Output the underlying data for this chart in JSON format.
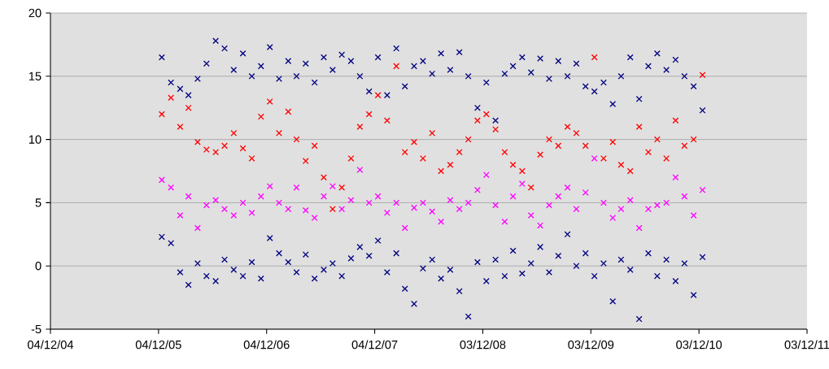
{
  "chart_data": {
    "type": "scatter",
    "x": [
      "2005-12-15",
      "2006-01-15",
      "2006-02-15",
      "2006-03-15",
      "2006-04-15",
      "2006-05-15",
      "2006-06-15",
      "2006-07-15",
      "2006-08-15",
      "2006-09-15",
      "2006-10-15",
      "2006-11-15",
      "2006-12-15",
      "2007-01-15",
      "2007-02-15",
      "2007-03-15",
      "2007-04-15",
      "2007-05-15",
      "2007-06-15",
      "2007-07-15",
      "2007-08-15",
      "2007-09-15",
      "2007-10-15",
      "2007-11-15",
      "2007-12-15",
      "2008-01-15",
      "2008-02-15",
      "2008-03-15",
      "2008-04-15",
      "2008-05-15",
      "2008-06-15",
      "2008-07-15",
      "2008-08-15",
      "2008-09-15",
      "2008-10-15",
      "2008-11-15",
      "2008-12-15",
      "2009-01-15",
      "2009-02-15",
      "2009-03-15",
      "2009-04-15",
      "2009-05-15",
      "2009-06-15",
      "2009-07-15",
      "2009-08-15",
      "2009-09-15",
      "2009-10-15",
      "2009-11-15",
      "2009-12-15",
      "2010-01-15",
      "2010-02-15",
      "2010-03-15",
      "2010-04-15",
      "2010-05-15",
      "2010-06-15",
      "2010-07-15",
      "2010-08-15",
      "2010-09-15",
      "2010-10-15",
      "2010-11-15",
      "2010-12-15"
    ],
    "series": [
      {
        "color": "#000080",
        "values": [
          16.5,
          14.5,
          14.0,
          13.5,
          14.8,
          16.0,
          17.8,
          17.2,
          15.5,
          16.8,
          15.0,
          15.8,
          17.3,
          14.8,
          16.2,
          15.0,
          16.0,
          14.5,
          16.5,
          15.5,
          16.7,
          16.2,
          15.0,
          13.8,
          16.5,
          13.5,
          17.2,
          14.2,
          15.8,
          16.2,
          15.2,
          16.8,
          15.5,
          16.9,
          15.0,
          12.5,
          14.5,
          11.5,
          15.2,
          15.8,
          16.5,
          15.3,
          16.4,
          14.8,
          16.2,
          15.0,
          16.0,
          14.2,
          13.8,
          14.5,
          12.8,
          15.0,
          16.5,
          13.2,
          15.8,
          16.8,
          15.5,
          16.3,
          15.0,
          14.2,
          12.3
        ]
      },
      {
        "color": "#ff0000",
        "values": [
          12.0,
          13.3,
          11.0,
          12.5,
          9.8,
          9.2,
          9.0,
          9.5,
          10.5,
          9.3,
          8.5,
          11.8,
          13.0,
          10.5,
          12.2,
          10.0,
          8.3,
          9.5,
          7.0,
          4.5,
          6.2,
          8.5,
          11.0,
          12.0,
          13.5,
          11.5,
          15.8,
          9.0,
          9.8,
          8.5,
          10.5,
          7.5,
          8.0,
          9.0,
          10.0,
          11.5,
          12.0,
          10.8,
          9.0,
          8.0,
          7.5,
          6.2,
          8.8,
          10.0,
          9.5,
          11.0,
          10.5,
          9.5,
          16.5,
          8.5,
          9.8,
          8.0,
          7.5,
          11.0,
          9.0,
          10.0,
          8.5,
          11.5,
          9.5,
          10.0,
          15.1
        ]
      },
      {
        "color": "#ff00ff",
        "values": [
          6.8,
          6.2,
          4.0,
          5.5,
          3.0,
          4.8,
          5.2,
          4.5,
          4.0,
          5.0,
          4.2,
          5.5,
          6.3,
          5.0,
          4.5,
          6.2,
          4.4,
          3.8,
          5.5,
          6.3,
          4.5,
          5.2,
          7.6,
          5.0,
          5.5,
          4.2,
          5.0,
          3.0,
          4.6,
          5.0,
          4.3,
          3.5,
          5.2,
          4.5,
          5.0,
          6.0,
          7.2,
          4.8,
          3.5,
          5.5,
          6.5,
          4.0,
          3.2,
          4.8,
          5.5,
          6.2,
          4.5,
          5.8,
          8.5,
          5.0,
          3.8,
          4.5,
          5.2,
          3.0,
          4.5,
          4.8,
          5.0,
          7.0,
          5.5,
          4.0,
          6.0
        ]
      },
      {
        "color": "#000080",
        "values": [
          2.3,
          1.8,
          -0.5,
          -1.5,
          0.2,
          -0.8,
          -1.2,
          0.5,
          -0.3,
          -0.8,
          0.3,
          -1.0,
          2.2,
          1.0,
          0.3,
          -0.5,
          0.9,
          -1.0,
          -0.3,
          0.2,
          -0.8,
          0.6,
          1.5,
          0.8,
          2.0,
          -0.5,
          1.0,
          -1.8,
          -3.0,
          -0.2,
          0.5,
          -1.0,
          -0.3,
          -2.0,
          -4.0,
          0.3,
          -1.2,
          0.5,
          -0.8,
          1.2,
          -0.6,
          0.2,
          1.5,
          -0.5,
          0.8,
          2.5,
          0.0,
          1.0,
          -0.8,
          0.2,
          -2.8,
          0.5,
          -0.3,
          -4.2,
          1.0,
          -0.8,
          0.5,
          -1.2,
          0.2,
          -2.3,
          0.7
        ]
      }
    ],
    "xlim": [
      "2004-12-04",
      "2011-12-03"
    ],
    "xticks": [
      {
        "value": "2004-12-04",
        "label": "04/12/04"
      },
      {
        "value": "2005-12-04",
        "label": "04/12/05"
      },
      {
        "value": "2006-12-04",
        "label": "04/12/06"
      },
      {
        "value": "2007-12-04",
        "label": "04/12/07"
      },
      {
        "value": "2008-12-03",
        "label": "03/12/08"
      },
      {
        "value": "2009-12-03",
        "label": "03/12/09"
      },
      {
        "value": "2010-12-03",
        "label": "03/12/10"
      },
      {
        "value": "2011-12-03",
        "label": "03/12/11"
      }
    ],
    "ylim": [
      -5,
      20
    ],
    "yticks": [
      -5,
      0,
      5,
      10,
      15,
      20
    ],
    "grid": "y",
    "marker": "cross"
  }
}
